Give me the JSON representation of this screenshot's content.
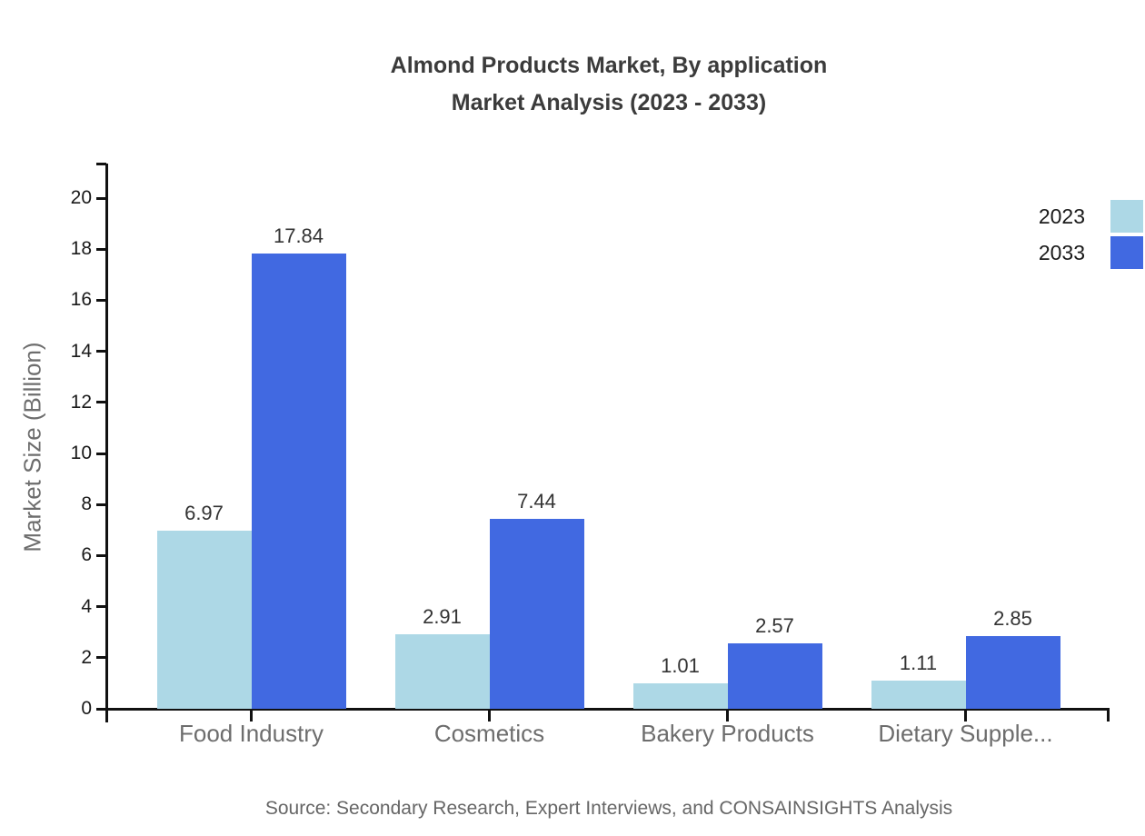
{
  "title": {
    "line1": "Almond Products Market, By application",
    "line2": "Market Analysis (2023 - 2033)"
  },
  "source": "Source: Secondary Research, Expert Interviews, and CONSAINSIGHTS Analysis",
  "chart_data": {
    "type": "bar",
    "title": "Almond Products Market, By application Market Analysis (2023 - 2033)",
    "categories": [
      "Food Industry",
      "Cosmetics",
      "Bakery Products",
      "Dietary Supple..."
    ],
    "series": [
      {
        "name": "2023",
        "color": "#ADD8E6",
        "values": [
          6.97,
          2.91,
          1.01,
          1.11
        ]
      },
      {
        "name": "2033",
        "color": "#4169E1",
        "values": [
          17.84,
          7.44,
          2.57,
          2.85
        ]
      }
    ],
    "xlabel": "",
    "ylabel": "Market Size (Billion)",
    "ylim": [
      0,
      20
    ],
    "yticks": [
      0,
      2,
      4,
      6,
      8,
      10,
      12,
      14,
      16,
      18,
      20
    ],
    "grid": false,
    "legend_position": "top-right",
    "value_labels_decimals": 2
  }
}
